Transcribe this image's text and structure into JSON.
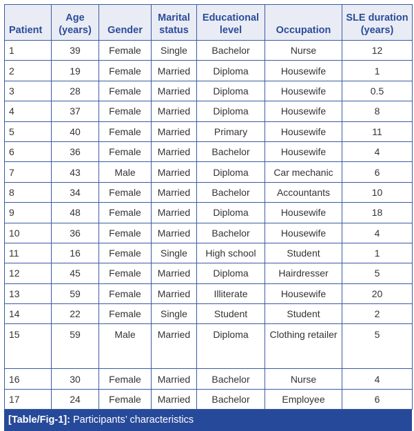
{
  "table": {
    "headers": [
      "Patient",
      "Age (years)",
      "Gender",
      "Marital status",
      "Educational level",
      "Occupation",
      "SLE duration (years)"
    ],
    "rows": [
      [
        "1",
        "39",
        "Female",
        "Single",
        "Bachelor",
        "Nurse",
        "12"
      ],
      [
        "2",
        "19",
        "Female",
        "Married",
        "Diploma",
        "Housewife",
        "1"
      ],
      [
        "3",
        "28",
        "Female",
        "Married",
        "Diploma",
        "Housewife",
        "0.5"
      ],
      [
        "4",
        "37",
        "Female",
        "Married",
        "Diploma",
        "Housewife",
        "8"
      ],
      [
        "5",
        "40",
        "Female",
        "Married",
        "Primary",
        "Housewife",
        "11"
      ],
      [
        "6",
        "36",
        "Female",
        "Married",
        "Bachelor",
        "Housewife",
        "4"
      ],
      [
        "7",
        "43",
        "Male",
        "Married",
        "Diploma",
        "Car mechanic",
        "6"
      ],
      [
        "8",
        "34",
        "Female",
        "Married",
        "Bachelor",
        "Accountants",
        "10"
      ],
      [
        "9",
        "48",
        "Female",
        "Married",
        "Diploma",
        "Housewife",
        "18"
      ],
      [
        "10",
        "36",
        "Female",
        "Married",
        "Bachelor",
        "Housewife",
        "4"
      ],
      [
        "11",
        "16",
        "Female",
        "Single",
        "High school",
        "Student",
        "1"
      ],
      [
        "12",
        "45",
        "Female",
        "Married",
        "Diploma",
        "Hairdresser",
        "5"
      ],
      [
        "13",
        "59",
        "Female",
        "Married",
        "Illiterate",
        "Housewife",
        "20"
      ],
      [
        "14",
        "22",
        "Female",
        "Single",
        "Student",
        "Student",
        "2"
      ],
      [
        "15",
        "59",
        "Male",
        "Married",
        "Diploma",
        "Clothing retailer",
        "5"
      ],
      [
        "16",
        "30",
        "Female",
        "Married",
        "Bachelor",
        "Nurse",
        "4"
      ],
      [
        "17",
        "24",
        "Female",
        "Married",
        "Bachelor",
        "Employee",
        "6"
      ]
    ]
  },
  "caption": {
    "label": "[Table/Fig-1]:",
    "text": "Participants’ characteristics"
  },
  "colors": {
    "border": "#3a5aa3",
    "header_bg": "#e9ecf4",
    "header_text": "#2b4c9a",
    "caption_bg": "#27499a"
  }
}
